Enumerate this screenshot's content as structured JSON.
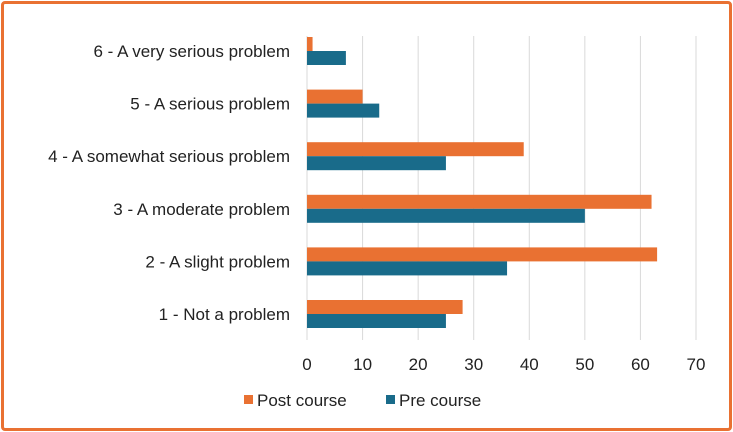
{
  "chart_data": {
    "type": "bar",
    "orientation": "horizontal",
    "categories": [
      "1 - Not a problem",
      "2 - A slight problem",
      "3 - A moderate problem",
      "4 - A somewhat serious problem",
      "5 - A serious problem",
      "6 - A very serious problem"
    ],
    "series": [
      {
        "name": "Post course",
        "color": "#e97132",
        "values": [
          28,
          63,
          62,
          39,
          10,
          1
        ]
      },
      {
        "name": "Pre course",
        "color": "#196b8a",
        "values": [
          25,
          36,
          50,
          25,
          13,
          7
        ]
      }
    ],
    "xlim": [
      0,
      70
    ],
    "xticks": [
      0,
      10,
      20,
      30,
      40,
      50,
      60,
      70
    ],
    "grid": "vertical",
    "legend": "bottom",
    "title": "",
    "xlabel": "",
    "ylabel": ""
  },
  "colors": {
    "frame": "#e97132",
    "grid": "#d9d9d9"
  }
}
